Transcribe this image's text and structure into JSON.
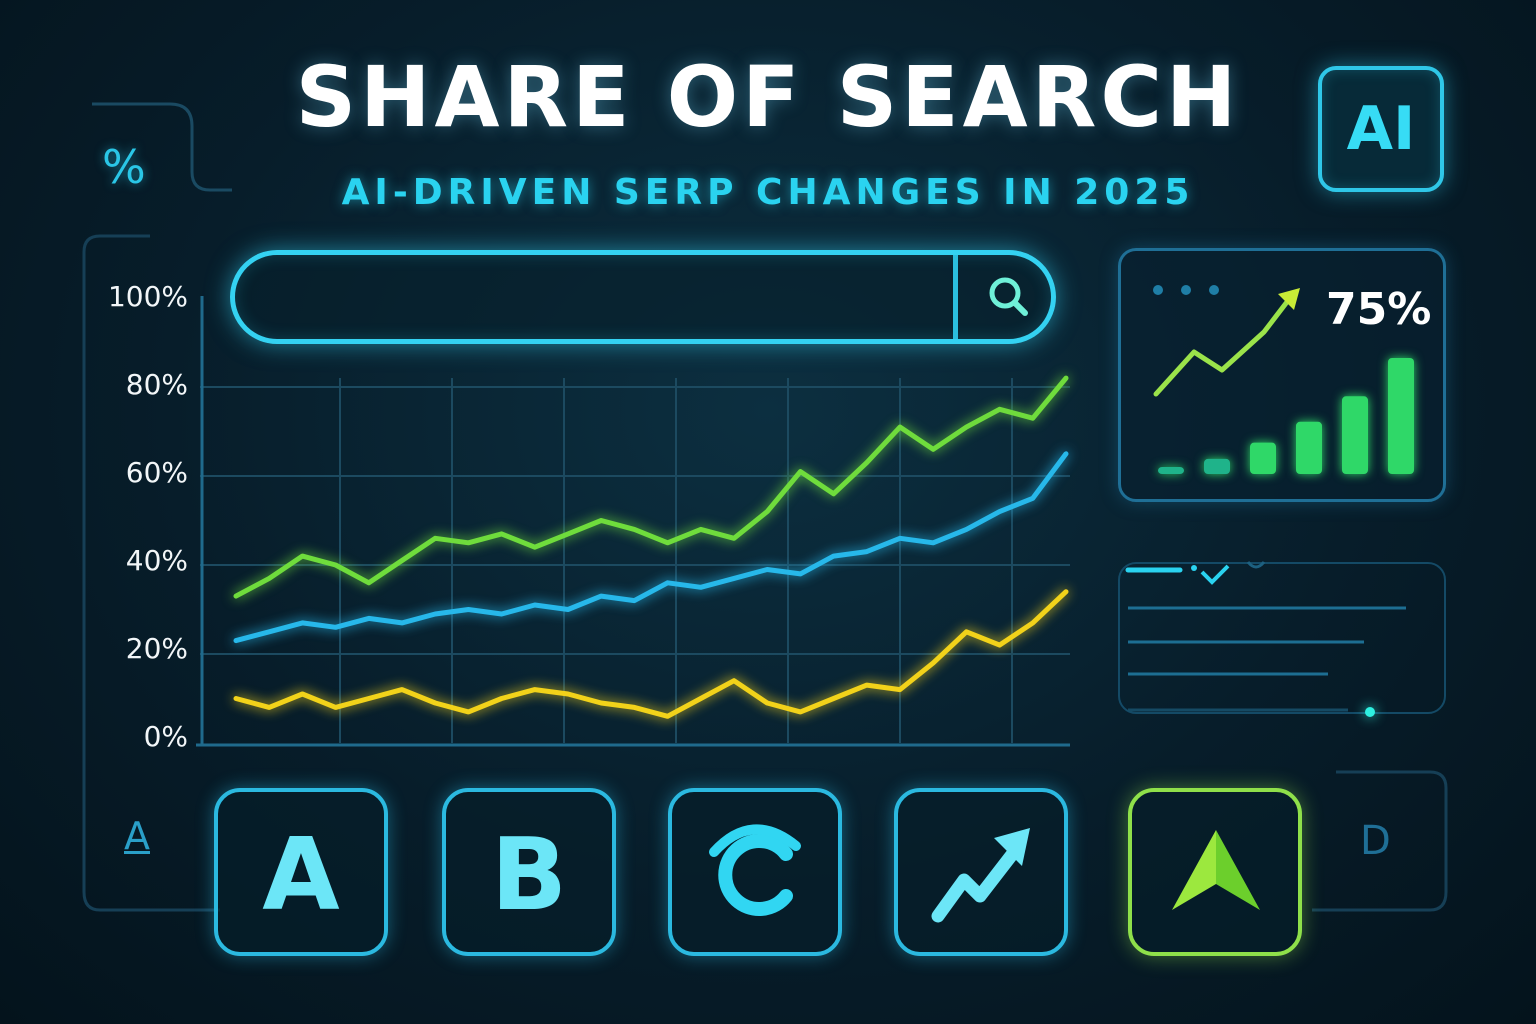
{
  "header": {
    "title": "SHARE OF SEARCH",
    "subtitle": "AI-DRIVEN SERP CHANGES IN 2025",
    "ai_badge": "AI",
    "percent_symbol": "%"
  },
  "search": {
    "icon": "search-icon"
  },
  "stat_card": {
    "value": "75%",
    "icon": "trend-arrow-icon",
    "bar_levels": [
      0.06,
      0.13,
      0.27,
      0.45,
      0.67,
      1.0
    ]
  },
  "tiles": [
    {
      "label": "A",
      "icon": "letter-a-tile"
    },
    {
      "label": "B",
      "icon": "letter-b-tile"
    },
    {
      "label": "C",
      "icon": "letter-c-tile"
    },
    {
      "label": "",
      "icon": "trend-arrow-icon"
    },
    {
      "label": "",
      "icon": "navigation-arrow-icon"
    }
  ],
  "side_letters": {
    "left": "A",
    "right": "D"
  },
  "colors": {
    "accent": "#2ad3f0",
    "series_green": "#6fdc3c",
    "series_blue": "#27b8ea",
    "series_yellow": "#f2d21a"
  },
  "chart_data": {
    "type": "line",
    "title": "SHARE OF SEARCH",
    "subtitle": "AI-DRIVEN SERP CHANGES IN 2025",
    "xlabel": "",
    "ylabel": "",
    "ylim": [
      0,
      100
    ],
    "yticks": [
      "0%",
      "20%",
      "40%",
      "60%",
      "80%",
      "100%"
    ],
    "grid": true,
    "x": [
      0,
      1,
      2,
      3,
      4,
      5,
      6,
      7,
      8,
      9,
      10,
      11,
      12,
      13,
      14,
      15,
      16,
      17,
      18,
      19,
      20,
      21,
      22,
      23,
      24,
      25
    ],
    "series": [
      {
        "color": "#6fdc3c",
        "values": [
          33,
          37,
          42,
          40,
          36,
          41,
          46,
          45,
          47,
          44,
          47,
          50,
          48,
          45,
          48,
          46,
          52,
          61,
          56,
          63,
          71,
          66,
          71,
          75,
          73,
          82
        ]
      },
      {
        "color": "#27b8ea",
        "values": [
          23,
          25,
          27,
          26,
          28,
          27,
          29,
          30,
          29,
          31,
          30,
          33,
          32,
          36,
          35,
          37,
          39,
          38,
          42,
          43,
          46,
          45,
          48,
          52,
          55,
          65
        ]
      },
      {
        "color": "#f2d21a",
        "values": [
          10,
          8,
          11,
          8,
          10,
          12,
          9,
          7,
          10,
          12,
          11,
          9,
          8,
          6,
          10,
          14,
          9,
          7,
          10,
          13,
          12,
          18,
          25,
          22,
          27,
          34
        ]
      }
    ]
  }
}
